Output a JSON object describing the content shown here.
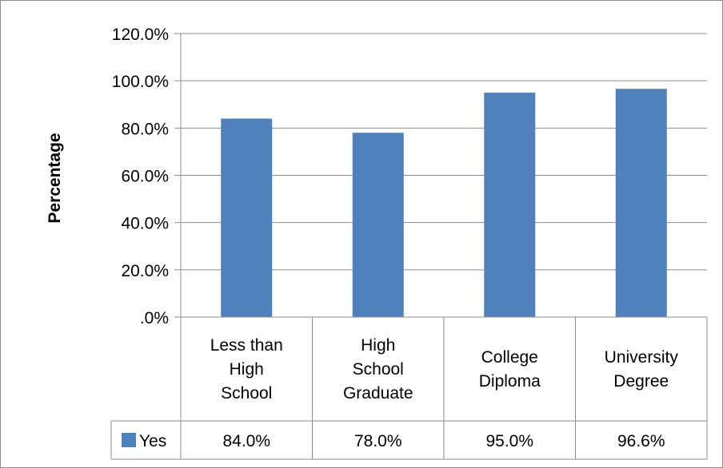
{
  "chart_data": {
    "type": "bar",
    "categories": [
      [
        "Less than",
        "High",
        "School"
      ],
      [
        "High",
        "School",
        "Graduate"
      ],
      [
        "College",
        "Diploma"
      ],
      [
        "University",
        "Degree"
      ]
    ],
    "series": [
      {
        "name": "Yes",
        "values": [
          84.0,
          78.0,
          95.0,
          96.6
        ],
        "data_labels": [
          "84.0%",
          "78.0%",
          "95.0%",
          "96.6%"
        ]
      }
    ],
    "title": "",
    "xlabel": "",
    "ylabel": "Percentage",
    "ylim": [
      0,
      120
    ],
    "yticks": [
      ".0%",
      "20.0%",
      "40.0%",
      "60.0%",
      "80.0%",
      "100.0%",
      "120.0%"
    ],
    "grid": true,
    "legend": "data-table",
    "colors": {
      "bar": "#4f81bd",
      "grid": "#8c8c8c",
      "axis": "#8c8c8c"
    }
  }
}
